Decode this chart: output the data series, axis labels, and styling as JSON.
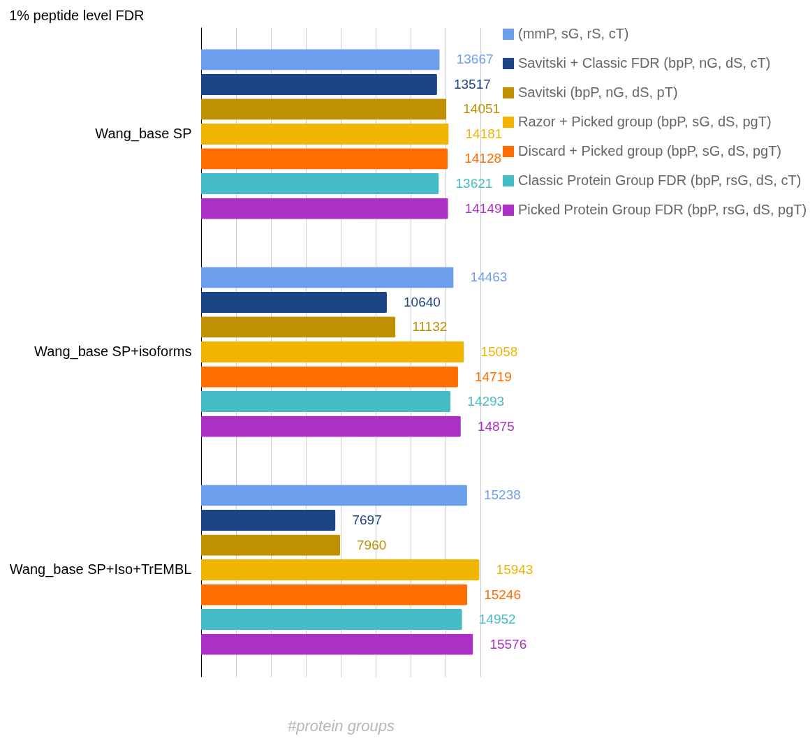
{
  "chart_data": {
    "type": "bar",
    "orientation": "horizontal",
    "title": "1% peptide level FDR",
    "xlabel": "#protein groups",
    "categories": [
      "Wang_base SP",
      "Wang_base SP+isoforms",
      "Wang_base SP+Iso+TrEMBL"
    ],
    "series": [
      {
        "name": "(mmP, sG, rS, cT)",
        "color": "#6d9eeb",
        "values": [
          13667,
          14463,
          15238
        ]
      },
      {
        "name": "Savitski + Classic FDR (bpP, nG, dS, cT)",
        "color": "#1c4587",
        "values": [
          13517,
          10640,
          7697
        ]
      },
      {
        "name": "Savitski (bpP, nG, dS, pT)",
        "color": "#bf9000",
        "values": [
          14051,
          11132,
          7960
        ]
      },
      {
        "name": "Razor + Picked group (bpP, sG, dS, pgT)",
        "color": "#f1b400",
        "values": [
          14181,
          15058,
          15943
        ]
      },
      {
        "name": "Discard + Picked group (bpP, sG, dS, pgT)",
        "color": "#ff6d01",
        "values": [
          14128,
          14719,
          15246
        ]
      },
      {
        "name": "Classic Protein Group FDR (bpP, rsG, dS, cT)",
        "color": "#46bdc6",
        "values": [
          13621,
          14293,
          14952
        ]
      },
      {
        "name": "Picked Protein Group FDR (bpP, rsG, dS, pgT)",
        "color": "#ab30c4",
        "values": [
          14149,
          14875,
          15576
        ]
      }
    ],
    "xlim": [
      0,
      16000
    ],
    "xticks": [
      {
        "value": 0,
        "label": null
      },
      {
        "value": 2000,
        "label": null
      },
      {
        "value": 4000,
        "label": null
      },
      {
        "value": 6000,
        "label": null
      },
      {
        "value": 8000,
        "label": null
      },
      {
        "value": 10000,
        "label": null
      },
      {
        "value": 12000,
        "label": null
      },
      {
        "value": 14000,
        "label": null
      },
      {
        "value": 16000,
        "label": null
      }
    ],
    "tick_labels": "y",
    "grid": "x",
    "legend": "top right",
    "data_labels": true
  }
}
